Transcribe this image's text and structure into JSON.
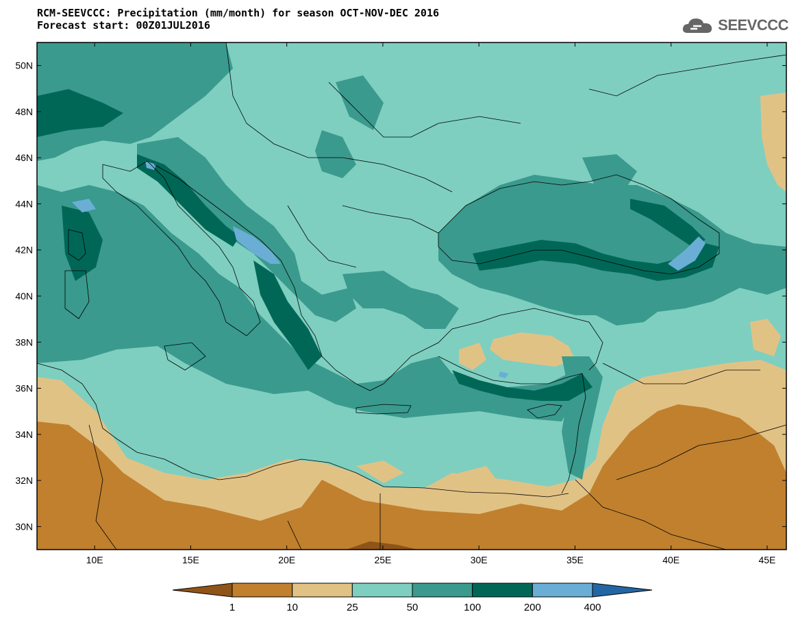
{
  "header": {
    "title_line1": "RCM-SEEVCCC: Precipitation (mm/month) for season OCT-NOV-DEC 2016",
    "title_line2": "Forecast start: 00Z01JUL2016",
    "logo_text": "SEEVCCC"
  },
  "map": {
    "lat_labels": [
      "50N",
      "48N",
      "46N",
      "44N",
      "42N",
      "40N",
      "38N",
      "36N",
      "34N",
      "32N",
      "30N"
    ],
    "lon_labels": [
      "10E",
      "15E",
      "20E",
      "25E",
      "30E",
      "35E",
      "40E",
      "45E"
    ],
    "lon_range": [
      7,
      46
    ],
    "lat_range": [
      29,
      51
    ]
  },
  "colorbar": {
    "labels": [
      "1",
      "10",
      "25",
      "50",
      "100",
      "200",
      "400"
    ],
    "colors": [
      "#8e5418",
      "#c0802e",
      "#e1c285",
      "#7ecfc0",
      "#3a9a8d",
      "#006757",
      "#6aaed6",
      "#2466a4"
    ]
  }
}
